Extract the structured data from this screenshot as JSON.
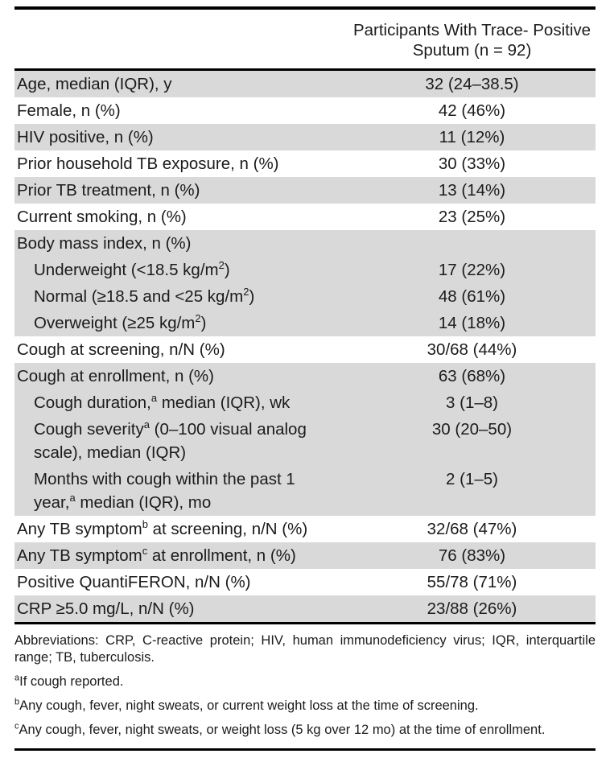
{
  "colors": {
    "row_shade": "#d9d9d9",
    "rule": "#000000",
    "text": "#1b1b1b",
    "background": "#ffffff"
  },
  "table": {
    "header_line1": "Participants With Trace- Positive",
    "header_line2": "Sputum (n = 92)",
    "rows": [
      {
        "shaded": true,
        "indent": false,
        "label": [
          {
            "t": "Age, median (IQR), y"
          }
        ],
        "value": "32 (24–38.5)"
      },
      {
        "shaded": false,
        "indent": false,
        "label": [
          {
            "t": "Female, n (%)"
          }
        ],
        "value": "42 (46%)"
      },
      {
        "shaded": true,
        "indent": false,
        "label": [
          {
            "t": "HIV positive, n (%)"
          }
        ],
        "value": "11 (12%)"
      },
      {
        "shaded": false,
        "indent": false,
        "label": [
          {
            "t": "Prior household TB exposure, n (%)"
          }
        ],
        "value": "30 (33%)"
      },
      {
        "shaded": true,
        "indent": false,
        "label": [
          {
            "t": "Prior TB treatment, n (%)"
          }
        ],
        "value": "13 (14%)"
      },
      {
        "shaded": false,
        "indent": false,
        "label": [
          {
            "t": "Current smoking, n (%)"
          }
        ],
        "value": "23 (25%)"
      },
      {
        "shaded": true,
        "indent": false,
        "label": [
          {
            "t": "Body mass index, n (%)"
          }
        ],
        "value": ""
      },
      {
        "shaded": true,
        "indent": true,
        "label": [
          {
            "t": "Underweight (<18.5 kg/m"
          },
          {
            "t": "2",
            "sup": true
          },
          {
            "t": ")"
          }
        ],
        "value": "17 (22%)"
      },
      {
        "shaded": true,
        "indent": true,
        "label": [
          {
            "t": "Normal (≥18.5 and <25 kg/m"
          },
          {
            "t": "2",
            "sup": true
          },
          {
            "t": ")"
          }
        ],
        "value": "48 (61%)"
      },
      {
        "shaded": true,
        "indent": true,
        "label": [
          {
            "t": "Overweight (≥25 kg/m"
          },
          {
            "t": "2",
            "sup": true
          },
          {
            "t": ")"
          }
        ],
        "value": "14 (18%)"
      },
      {
        "shaded": false,
        "indent": false,
        "label": [
          {
            "t": "Cough at screening, n/N (%)"
          }
        ],
        "value": "30/68 (44%)"
      },
      {
        "shaded": true,
        "indent": false,
        "label": [
          {
            "t": "Cough at enrollment, n (%)"
          }
        ],
        "value": "63 (68%)"
      },
      {
        "shaded": true,
        "indent": true,
        "label": [
          {
            "t": "Cough duration,"
          },
          {
            "t": "a",
            "sup": true
          },
          {
            "t": " median (IQR), wk"
          }
        ],
        "value": "3 (1–8)"
      },
      {
        "shaded": true,
        "indent": true,
        "label": [
          {
            "t": "Cough severity"
          },
          {
            "t": "a",
            "sup": true
          },
          {
            "t": " (0–100 visual analog"
          },
          {
            "br": true
          },
          {
            "t": "scale), median (IQR)"
          }
        ],
        "value": "30 (20–50)"
      },
      {
        "shaded": true,
        "indent": true,
        "label": [
          {
            "t": "Months with cough within the past 1"
          },
          {
            "br": true
          },
          {
            "t": "year,"
          },
          {
            "t": "a",
            "sup": true
          },
          {
            "t": " median (IQR), mo"
          }
        ],
        "value": "2 (1–5)"
      },
      {
        "shaded": false,
        "indent": false,
        "label": [
          {
            "t": "Any TB symptom"
          },
          {
            "t": "b",
            "sup": true
          },
          {
            "t": " at screening, n/N (%)"
          }
        ],
        "value": "32/68 (47%)"
      },
      {
        "shaded": true,
        "indent": false,
        "label": [
          {
            "t": "Any TB symptom"
          },
          {
            "t": "c",
            "sup": true
          },
          {
            "t": " at enrollment, n (%)"
          }
        ],
        "value": "76 (83%)"
      },
      {
        "shaded": false,
        "indent": false,
        "label": [
          {
            "t": "Positive QuantiFERON, n/N (%)"
          }
        ],
        "value": "55/78 (71%)"
      },
      {
        "shaded": true,
        "indent": false,
        "label": [
          {
            "t": "CRP ≥5.0 mg/L, n/N (%)"
          }
        ],
        "value": "23/88 (26%)"
      }
    ]
  },
  "footnotes": [
    {
      "justify": true,
      "parts": [
        {
          "t": "Abbreviations: CRP, C-reactive protein; HIV, human immunodeficiency virus; IQR, interquartile range; TB, tuberculosis."
        }
      ]
    },
    {
      "justify": false,
      "parts": [
        {
          "t": "a",
          "sup": true
        },
        {
          "t": "If cough reported."
        }
      ]
    },
    {
      "justify": false,
      "parts": [
        {
          "t": "b",
          "sup": true
        },
        {
          "t": "Any cough, fever, night sweats, or current weight loss at the time of screening."
        }
      ]
    },
    {
      "justify": false,
      "parts": [
        {
          "t": "c",
          "sup": true
        },
        {
          "t": "Any cough, fever, night sweats, or weight loss (5 kg over 12 mo) at the time of enrollment."
        }
      ]
    }
  ]
}
